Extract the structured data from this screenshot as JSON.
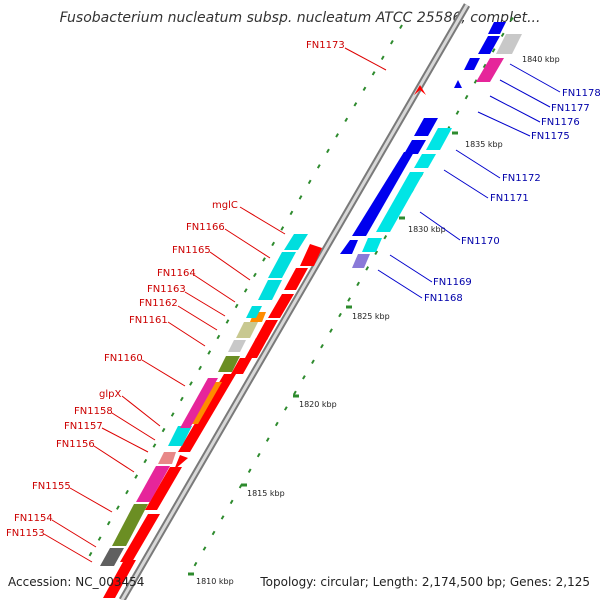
{
  "title": "Fusobacterium nucleatum subsp. nucleatum ATCC 25586, complet...",
  "footer": {
    "accession": "Accession: NC_003454",
    "topology": "Topology: circular; Length: 2,174,500 bp; Genes: 2,125"
  },
  "ticks": [
    "1810 kbp",
    "1815 kbp",
    "1820 kbp",
    "1825 kbp",
    "1830 kbp",
    "1835 kbp",
    "1840 kbp"
  ],
  "labels_left": [
    "FN1173",
    "mglC",
    "FN1166",
    "FN1165",
    "FN1164",
    "FN1163",
    "FN1162",
    "FN1161",
    "FN1160",
    "glpX",
    "FN1158",
    "FN1157",
    "FN1156",
    "FN1155",
    "FN1154",
    "FN1153"
  ],
  "labels_right": [
    "FN1178",
    "FN1177",
    "FN1176",
    "FN1175",
    "FN1172",
    "FN1171",
    "FN1170",
    "FN1169",
    "FN1168"
  ],
  "colors": {
    "forward_gene": "#ff0000",
    "reverse_gene": "#0000ee",
    "cyan": "#00e5e5",
    "magenta": "#e6259a",
    "olive": "#6b8e23",
    "orange": "#ff8c00",
    "khaki": "#c8c890",
    "grey": "#c8c8c8",
    "backbone": "#8a8a8a",
    "tick": "#2e8b2e"
  }
}
